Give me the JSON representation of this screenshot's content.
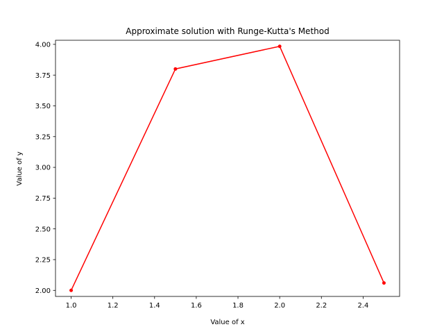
{
  "chart_data": {
    "type": "line",
    "title": "Approximate solution with Runge-Kutta's Method",
    "xlabel": "Value of x",
    "ylabel": "Value of y",
    "x": [
      1.0,
      1.5,
      2.0,
      2.5
    ],
    "series": [
      {
        "values": [
          2.0,
          3.8,
          3.984,
          2.06
        ],
        "color": "#ff0000",
        "marker": "circle"
      }
    ],
    "xlim": [
      0.925,
      2.575
    ],
    "ylim": [
      1.9508,
      4.0332
    ],
    "xticks": [
      1.0,
      1.2,
      1.4,
      1.6,
      1.8,
      2.0,
      2.2,
      2.4
    ],
    "xtick_labels": [
      "1.0",
      "1.2",
      "1.4",
      "1.6",
      "1.8",
      "2.0",
      "2.2",
      "2.4"
    ],
    "yticks": [
      2.0,
      2.25,
      2.5,
      2.75,
      3.0,
      3.25,
      3.5,
      3.75,
      4.0
    ],
    "ytick_labels": [
      "2.00",
      "2.25",
      "2.50",
      "2.75",
      "3.00",
      "3.25",
      "3.50",
      "3.75",
      "4.00"
    ],
    "grid": false,
    "legend": false
  }
}
